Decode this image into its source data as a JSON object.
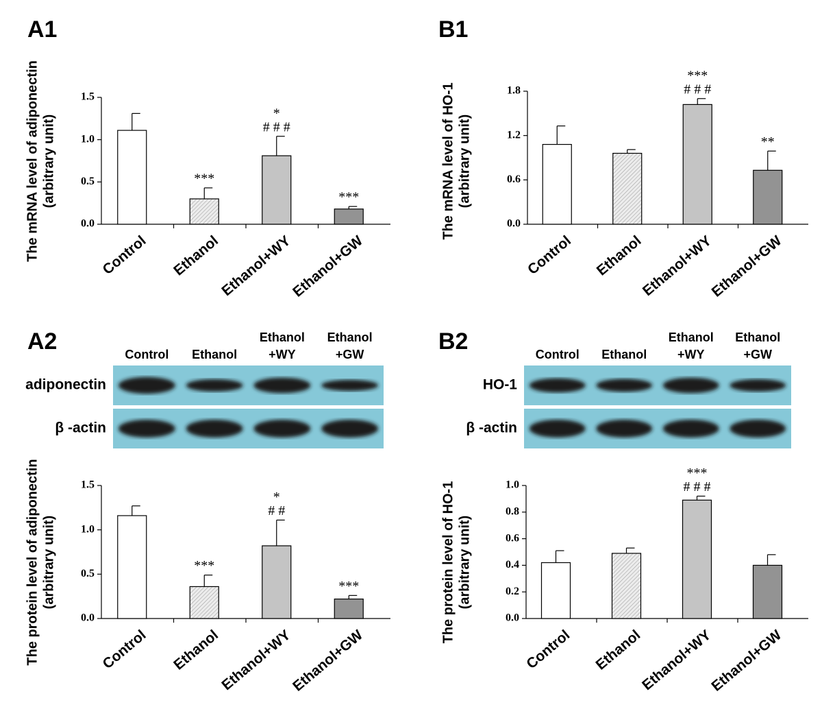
{
  "chart_data": [
    {
      "type": "bar",
      "panel": "A1",
      "ylabel": [
        "The mRNA level of adiponectin",
        "(arbitrary unit)"
      ],
      "categories": [
        "Control",
        "Ethanol",
        "Ethanol+WY",
        "Ethanol+GW"
      ],
      "values": [
        1.11,
        0.3,
        0.81,
        0.18
      ],
      "errors": [
        0.2,
        0.13,
        0.23,
        0.03
      ],
      "annotations": [
        [],
        [
          "***"
        ],
        [
          "*",
          "# # #"
        ],
        [
          "***"
        ]
      ],
      "colors": [
        "#ffffff",
        "#e4e4e4",
        "#c4c4c4",
        "#939393"
      ],
      "patterns": [
        "solid",
        "hatch",
        "solid",
        "solid"
      ],
      "ylim": [
        0,
        1.5
      ],
      "yticks": [
        {
          "value": 0,
          "label": "0.0"
        },
        {
          "value": 0.5,
          "label": "0.5"
        },
        {
          "value": 1,
          "label": "1.0"
        },
        {
          "value": 1.5,
          "label": "1.5"
        }
      ]
    },
    {
      "type": "bar",
      "panel": "B1",
      "ylabel": [
        "The mRNA level of HO-1",
        "(arbitrary unit)"
      ],
      "categories": [
        "Control",
        "Ethanol",
        "Ethanol+WY",
        "Ethanol+GW"
      ],
      "values": [
        1.08,
        0.96,
        1.62,
        0.73
      ],
      "errors": [
        0.25,
        0.05,
        0.08,
        0.26
      ],
      "annotations": [
        [],
        [],
        [
          "***",
          "# # #"
        ],
        [
          "**"
        ]
      ],
      "colors": [
        "#ffffff",
        "#e4e4e4",
        "#c4c4c4",
        "#939393"
      ],
      "patterns": [
        "solid",
        "hatch",
        "solid",
        "solid"
      ],
      "ylim": [
        0,
        1.8
      ],
      "yticks": [
        {
          "value": 0,
          "label": "0.0"
        },
        0.6,
        1.2,
        1.8
      ]
    },
    {
      "type": "bar",
      "panel": "A2",
      "ylabel": [
        "The protein level of adiponectin",
        "(arbitrary unit)"
      ],
      "categories": [
        "Control",
        "Ethanol",
        "Ethanol+WY",
        "Ethanol+GW"
      ],
      "values": [
        1.16,
        0.36,
        0.82,
        0.22
      ],
      "errors": [
        0.11,
        0.13,
        0.29,
        0.04
      ],
      "annotations": [
        [],
        [
          "***"
        ],
        [
          "*",
          "# #"
        ],
        [
          "***"
        ]
      ],
      "colors": [
        "#ffffff",
        "#e4e4e4",
        "#c4c4c4",
        "#939393"
      ],
      "patterns": [
        "solid",
        "hatch",
        "solid",
        "solid"
      ],
      "ylim": [
        0,
        1.5
      ],
      "yticks": [
        {
          "value": 0,
          "label": "0.0"
        },
        {
          "value": 0.5,
          "label": "0.5"
        },
        {
          "value": 1,
          "label": "1.0"
        },
        {
          "value": 1.5,
          "label": "1.5"
        }
      ]
    },
    {
      "type": "bar",
      "panel": "B2",
      "ylabel": [
        "The protein level of HO-1",
        "(arbitrary unit)"
      ],
      "categories": [
        "Control",
        "Ethanol",
        "Ethanol+WY",
        "Ethanol+GW"
      ],
      "values": [
        0.42,
        0.49,
        0.89,
        0.4
      ],
      "errors": [
        0.09,
        0.04,
        0.03,
        0.08
      ],
      "annotations": [
        [],
        [],
        [
          "***",
          "# # #"
        ],
        []
      ],
      "colors": [
        "#ffffff",
        "#e4e4e4",
        "#c4c4c4",
        "#939393"
      ],
      "patterns": [
        "solid",
        "hatch",
        "solid",
        "solid"
      ],
      "ylim": [
        0,
        1.0
      ],
      "yticks": [
        {
          "value": 0,
          "label": "0.0"
        },
        0.2,
        0.4,
        0.6,
        0.8,
        {
          "value": 1,
          "label": "1.0"
        }
      ]
    }
  ],
  "blots": [
    {
      "lanes": [
        [
          "Control"
        ],
        [
          "Ethanol"
        ],
        [
          "Ethanol",
          "+WY"
        ],
        [
          "Ethanol",
          "+GW"
        ]
      ],
      "rows": [
        "adiponectin",
        "β -actin"
      ]
    },
    {
      "lanes": [
        [
          "Control"
        ],
        [
          "Ethanol"
        ],
        [
          "Ethanol",
          "+WY"
        ],
        [
          "Ethanol",
          "+GW"
        ]
      ],
      "rows": [
        "HO-1",
        "β -actin"
      ]
    }
  ]
}
